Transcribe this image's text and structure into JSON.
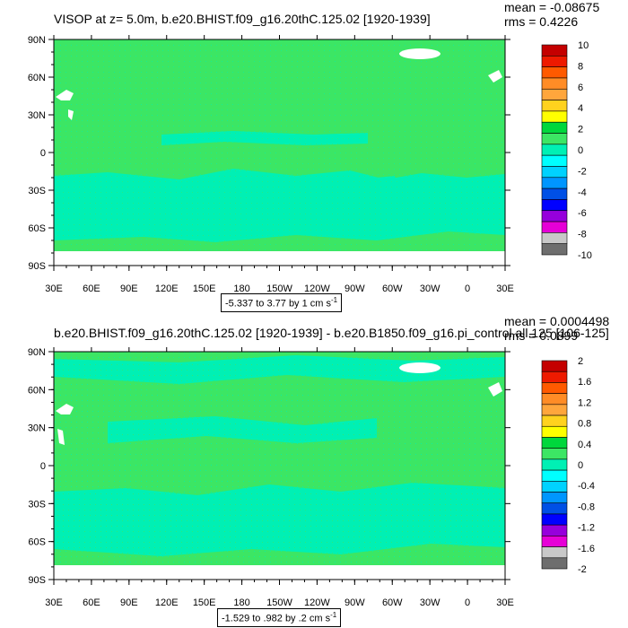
{
  "panels": [
    {
      "title": "VISOP at z=   5.0m, b.e20.BHIST.f09_g16.20thC.125.02 [1920-1939]",
      "mean_label": "mean = -0.08675",
      "rms_label": "rms = 0.4226",
      "range_label": "-5.337 to 3.77 by 1 cm s",
      "range_exp": "-1",
      "colorbar_labels": [
        "10",
        "8",
        "6",
        "4",
        "2",
        "0",
        "-2",
        "-4",
        "-6",
        "-8",
        "-10"
      ],
      "colorbar_colors": [
        "#c40000",
        "#ee1a00",
        "#ff5a00",
        "#ff8c26",
        "#ffa63c",
        "#ffd21e",
        "#ffff00",
        "#00d73c",
        "#3ce664",
        "#00f0b4",
        "#00ffff",
        "#00d2ff",
        "#0096ff",
        "#0050e6",
        "#0000ff",
        "#9600dc",
        "#e600d7",
        "#c8c8c8",
        "#6e6e6e"
      ]
    },
    {
      "title": "b.e20.BHIST.f09_g16.20thC.125.02 [1920-1939] - b.e20.B1850.f09_g16.pi_control.all.125 [106-125]",
      "mean_label": "mean = 0.0004498",
      "rms_label": "rms = 0.0899",
      "range_label": "-1.529 to .982 by .2 cm s",
      "range_exp": "-1",
      "colorbar_labels": [
        "2",
        "1.6",
        "1.2",
        "0.8",
        "0.4",
        "0",
        "-0.4",
        "-0.8",
        "-1.2",
        "-1.6",
        "-2"
      ],
      "colorbar_colors": [
        "#c40000",
        "#ee1a00",
        "#ff5a00",
        "#ff8c26",
        "#ffa63c",
        "#ffd21e",
        "#ffff00",
        "#00d73c",
        "#3ce664",
        "#00f0b4",
        "#00ffff",
        "#00d2ff",
        "#0096ff",
        "#0050e6",
        "#0000ff",
        "#9600dc",
        "#e600d7",
        "#c8c8c8",
        "#6e6e6e"
      ]
    }
  ],
  "chart_data": [
    {
      "type": "heatmap",
      "title": "VISOP at z=   5.0m, b.e20.BHIST.f09_g16.20thC.125.02 [1920-1939]",
      "x_tick_labels": [
        "30E",
        "60E",
        "90E",
        "120E",
        "150E",
        "180",
        "150W",
        "120W",
        "90W",
        "60W",
        "30W",
        "0",
        "30E"
      ],
      "y_tick_labels": [
        "90N",
        "60N",
        "30N",
        "0",
        "30S",
        "60S",
        "90S"
      ],
      "mean": -0.08675,
      "rms": 0.4226,
      "field_min": -5.337,
      "field_max": 3.77,
      "contour_interval": 1,
      "units": "cm s-1",
      "colorbar_range": [
        -10,
        10
      ]
    },
    {
      "type": "heatmap",
      "title": "b.e20.BHIST.f09_g16.20thC.125.02 [1920-1939] - b.e20.B1850.f09_g16.pi_control.all.125 [106-125]",
      "x_tick_labels": [
        "30E",
        "60E",
        "90E",
        "120E",
        "150E",
        "180",
        "150W",
        "120W",
        "90W",
        "60W",
        "30W",
        "0",
        "30E"
      ],
      "y_tick_labels": [
        "90N",
        "60N",
        "30N",
        "0",
        "30S",
        "60S",
        "90S"
      ],
      "mean": 0.0004498,
      "rms": 0.0899,
      "field_min": -1.529,
      "field_max": 0.982,
      "contour_interval": 0.2,
      "units": "cm s-1",
      "colorbar_range": [
        -2,
        2
      ]
    }
  ]
}
